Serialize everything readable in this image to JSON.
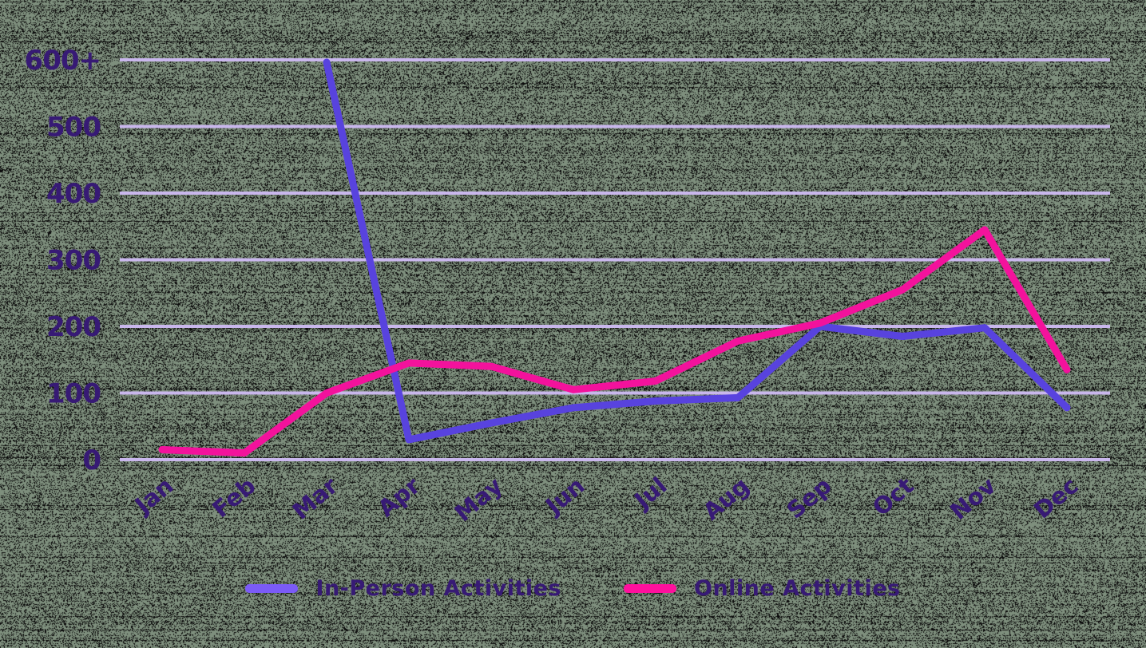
{
  "colors": {
    "background_base": "#7e8f7d",
    "background_noise": "#0a0a0a",
    "gridline": "#c9b7ec",
    "axis_label": "#371a75",
    "in_person_line": "#5843de",
    "online_line": "#f3129c",
    "legend_swatch_in_person": "#7b5bf7",
    "legend_swatch_online": "#ff109d"
  },
  "chart_data": {
    "type": "line",
    "title": "",
    "xlabel": "",
    "ylabel": "",
    "categories": [
      "Jan",
      "Feb",
      "Mar",
      "Apr",
      "May",
      "Jun",
      "Jul",
      "Aug",
      "Sep",
      "Oct",
      "Nov",
      "Dec"
    ],
    "series": [
      {
        "name": "In-Person Activities",
        "color": "#5843de",
        "values": [
          null,
          null,
          600,
          30,
          55,
          78,
          88,
          93,
          200,
          185,
          198,
          78
        ]
      },
      {
        "name": "Online Activities",
        "color": "#f3129c",
        "values": [
          15,
          10,
          100,
          145,
          140,
          105,
          118,
          178,
          205,
          255,
          345,
          135
        ]
      }
    ],
    "y_ticks": [
      {
        "label": "0",
        "value": 0
      },
      {
        "label": "100",
        "value": 100
      },
      {
        "label": "200",
        "value": 200
      },
      {
        "label": "300",
        "value": 300
      },
      {
        "label": "400",
        "value": 400
      },
      {
        "label": "500",
        "value": 500
      },
      {
        "label": "600+",
        "value": 600
      }
    ],
    "ylim": [
      0,
      620
    ],
    "grid": "horizontal-only",
    "legend_position": "bottom",
    "notes": "In-Person Activities March value exceeds the axis maximum; the line is clipped at the 600+ gridline. In-Person series has no data for Jan and Feb."
  },
  "legend": {
    "items": [
      {
        "label": "In-Person Activities",
        "swatch_color": "#7b5bf7"
      },
      {
        "label": "Online Activities",
        "swatch_color": "#ff109d"
      }
    ]
  }
}
